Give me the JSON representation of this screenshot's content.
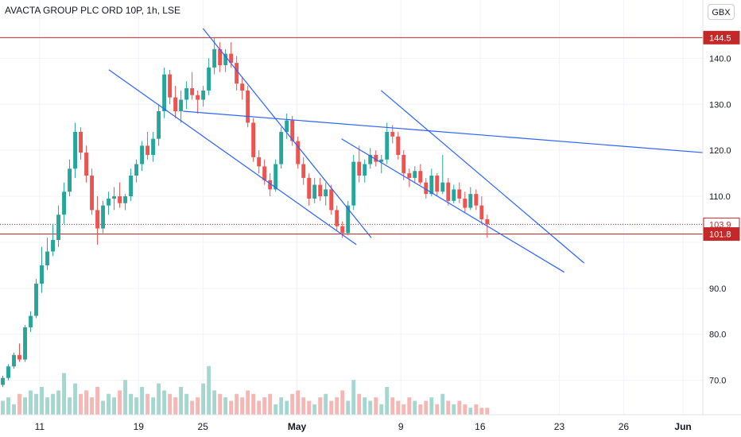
{
  "header": {
    "title": "AVACTA GROUP PLC ORD 10P, 1h, LSE",
    "currency": "GBX"
  },
  "colors": {
    "up": "#26a69a",
    "down": "#ef5350",
    "trend": "#2962ff",
    "level": "#c62828",
    "volume_up": "#a5d6cf",
    "volume_down": "#f6b6b3"
  },
  "chart_data": {
    "type": "candlestick",
    "title": "AVACTA GROUP PLC ORD 10P, 1h, LSE",
    "y_axis": {
      "unit": "GBX",
      "ticks": [
        70.0,
        80.0,
        90.0,
        100.0,
        110.0,
        120.0,
        130.0,
        140.0
      ],
      "tick_labels": [
        "70.0",
        "80.0",
        "90.0",
        "",
        "110.0",
        "120.0",
        "130.0",
        "140.0"
      ],
      "range": [
        62.5,
        147.5
      ]
    },
    "x_axis": {
      "tick_labels": [
        "11",
        "19",
        "25",
        "May",
        "9",
        "16",
        "23",
        "26",
        "Jun"
      ],
      "tick_positions": [
        4,
        14,
        20.5,
        30,
        40.5,
        48.5,
        56.5,
        63,
        69
      ]
    },
    "x_range": [
      0,
      71
    ],
    "last_data_x": 49.5,
    "price_labels": [
      {
        "value": 144.5,
        "text": "144.5",
        "style": "filled"
      },
      {
        "value": 103.9,
        "text": "103.9",
        "style": "outline"
      },
      {
        "value": 101.8,
        "text": "101.8",
        "style": "filled"
      }
    ],
    "horizontal_lines": [
      {
        "value": 144.5,
        "style": "solid"
      },
      {
        "value": 101.8,
        "style": "solid"
      },
      {
        "value": 103.9,
        "style": "dotted"
      }
    ],
    "trend_lines": [
      {
        "from": [
          11.0,
          137.5
        ],
        "to": [
          36.0,
          99.5
        ]
      },
      {
        "from": [
          20.5,
          146.5
        ],
        "to": [
          37.5,
          101.0
        ]
      },
      {
        "from": [
          18.5,
          128.5
        ],
        "to": [
          71.0,
          119.5
        ]
      },
      {
        "from": [
          34.5,
          122.5
        ],
        "to": [
          57.0,
          93.5
        ]
      },
      {
        "from": [
          38.5,
          133.0
        ],
        "to": [
          59.0,
          95.5
        ]
      }
    ],
    "ohlc": [
      [
        69.0,
        71.0,
        68.5,
        70.5
      ],
      [
        70.5,
        73.5,
        70.0,
        73.0
      ],
      [
        73.0,
        76.0,
        72.5,
        75.5
      ],
      [
        75.5,
        78.0,
        74.0,
        74.5
      ],
      [
        74.5,
        82.0,
        74.0,
        81.5
      ],
      [
        81.5,
        85.0,
        80.5,
        84.0
      ],
      [
        84.0,
        92.0,
        83.5,
        91.0
      ],
      [
        91.0,
        99.0,
        89.0,
        95.0
      ],
      [
        95.0,
        101.0,
        94.0,
        98.0
      ],
      [
        98.0,
        104.0,
        97.0,
        100.5
      ],
      [
        100.5,
        108.0,
        99.0,
        106.0
      ],
      [
        106.0,
        113.0,
        104.0,
        111.0
      ],
      [
        111.0,
        118.0,
        110.0,
        116.0
      ],
      [
        116.0,
        126.0,
        114.0,
        124.0
      ],
      [
        124.0,
        125.0,
        118.0,
        119.5
      ],
      [
        119.5,
        121.0,
        113.0,
        114.5
      ],
      [
        114.5,
        116.0,
        106.0,
        107.0
      ],
      [
        107.0,
        110.0,
        99.5,
        103.0
      ],
      [
        103.0,
        109.0,
        102.0,
        108.0
      ],
      [
        108.0,
        111.0,
        106.0,
        109.5
      ],
      [
        109.5,
        112.0,
        107.0,
        110.0
      ],
      [
        110.0,
        113.0,
        107.5,
        108.5
      ],
      [
        108.5,
        110.5,
        107.0,
        110.0
      ],
      [
        110.0,
        116.0,
        109.0,
        114.5
      ],
      [
        114.5,
        118.0,
        113.0,
        117.0
      ],
      [
        117.0,
        122.0,
        115.5,
        121.0
      ],
      [
        121.0,
        124.0,
        118.0,
        119.0
      ],
      [
        119.0,
        124.0,
        117.5,
        122.5
      ],
      [
        122.5,
        130.0,
        121.0,
        128.5
      ],
      [
        128.5,
        138.0,
        127.0,
        136.5
      ],
      [
        136.5,
        137.5,
        130.0,
        131.5
      ],
      [
        131.5,
        134.0,
        127.0,
        128.5
      ],
      [
        128.5,
        133.0,
        126.0,
        131.0
      ],
      [
        131.0,
        135.0,
        129.0,
        133.5
      ],
      [
        133.5,
        137.0,
        131.0,
        132.0
      ],
      [
        132.0,
        133.0,
        128.0,
        131.0
      ],
      [
        131.0,
        134.0,
        129.5,
        133.0
      ],
      [
        133.0,
        140.0,
        132.0,
        138.0
      ],
      [
        138.0,
        144.5,
        136.5,
        142.0
      ],
      [
        142.0,
        143.5,
        137.0,
        138.5
      ],
      [
        138.5,
        142.0,
        137.0,
        141.0
      ],
      [
        141.0,
        143.5,
        138.0,
        139.0
      ],
      [
        139.0,
        140.5,
        133.0,
        134.5
      ],
      [
        134.5,
        136.0,
        131.0,
        133.0
      ],
      [
        133.0,
        134.0,
        125.0,
        126.0
      ],
      [
        126.0,
        127.0,
        117.5,
        118.5
      ],
      [
        118.5,
        120.0,
        115.0,
        116.5
      ],
      [
        116.5,
        118.0,
        112.5,
        113.5
      ],
      [
        113.5,
        115.0,
        110.0,
        111.5
      ],
      [
        111.5,
        118.0,
        111.0,
        117.0
      ],
      [
        117.0,
        125.0,
        116.0,
        124.0
      ],
      [
        124.0,
        128.0,
        122.5,
        126.5
      ],
      [
        126.5,
        127.5,
        121.0,
        122.0
      ],
      [
        122.0,
        123.0,
        116.0,
        117.0
      ],
      [
        117.0,
        118.5,
        112.5,
        114.0
      ],
      [
        114.0,
        115.0,
        108.0,
        109.5
      ],
      [
        109.5,
        114.0,
        108.5,
        112.5
      ],
      [
        112.5,
        114.0,
        109.0,
        110.0
      ],
      [
        110.0,
        113.0,
        108.0,
        111.5
      ],
      [
        111.5,
        112.5,
        106.0,
        107.0
      ],
      [
        107.0,
        108.0,
        102.5,
        103.5
      ],
      [
        103.5,
        104.5,
        101.0,
        102.0
      ],
      [
        102.0,
        109.0,
        101.5,
        108.0
      ],
      [
        108.0,
        119.0,
        107.0,
        117.5
      ],
      [
        117.5,
        121.0,
        113.0,
        114.5
      ],
      [
        114.5,
        118.0,
        113.0,
        117.0
      ],
      [
        117.0,
        120.5,
        116.0,
        119.0
      ],
      [
        119.0,
        120.0,
        116.5,
        117.5
      ],
      [
        117.5,
        119.0,
        115.0,
        118.0
      ],
      [
        118.0,
        126.0,
        117.0,
        124.0
      ],
      [
        124.0,
        125.5,
        121.5,
        123.0
      ],
      [
        123.0,
        124.0,
        118.0,
        119.0
      ],
      [
        119.0,
        120.0,
        113.5,
        115.0
      ],
      [
        115.0,
        116.0,
        112.0,
        114.0
      ],
      [
        114.0,
        116.5,
        113.0,
        115.5
      ],
      [
        115.5,
        117.0,
        112.5,
        113.0
      ],
      [
        113.0,
        114.0,
        109.5,
        110.5
      ],
      [
        110.5,
        116.0,
        110.0,
        114.5
      ],
      [
        114.5,
        115.0,
        110.0,
        111.0
      ],
      [
        111.0,
        119.0,
        110.5,
        113.0
      ],
      [
        113.0,
        114.0,
        108.0,
        109.0
      ],
      [
        109.0,
        112.5,
        108.5,
        111.5
      ],
      [
        111.5,
        113.0,
        108.5,
        109.5
      ],
      [
        109.5,
        111.0,
        106.5,
        107.5
      ],
      [
        107.5,
        112.0,
        107.0,
        110.5
      ],
      [
        110.5,
        111.5,
        107.0,
        108.0
      ],
      [
        108.0,
        110.0,
        104.0,
        105.0
      ],
      [
        105.0,
        106.0,
        101.0,
        103.9
      ]
    ],
    "volume": [
      4,
      5,
      3,
      6,
      5,
      7,
      6,
      8,
      5,
      6,
      7,
      12,
      5,
      9,
      6,
      7,
      5,
      8,
      4,
      6,
      5,
      7,
      10,
      6,
      5,
      8,
      6,
      5,
      9,
      7,
      6,
      5,
      8,
      6,
      4,
      5,
      9,
      14,
      7,
      6,
      5,
      4,
      6,
      5,
      7,
      6,
      4,
      5,
      6,
      3,
      5,
      4,
      6,
      7,
      5,
      4,
      3,
      5,
      6,
      4,
      5,
      7,
      4,
      10,
      6,
      5,
      4,
      5,
      3,
      8,
      5,
      4,
      3,
      5,
      4,
      3,
      4,
      5,
      3,
      6,
      4,
      3,
      4,
      3,
      2,
      3,
      2,
      2
    ],
    "volume_max": 16
  }
}
